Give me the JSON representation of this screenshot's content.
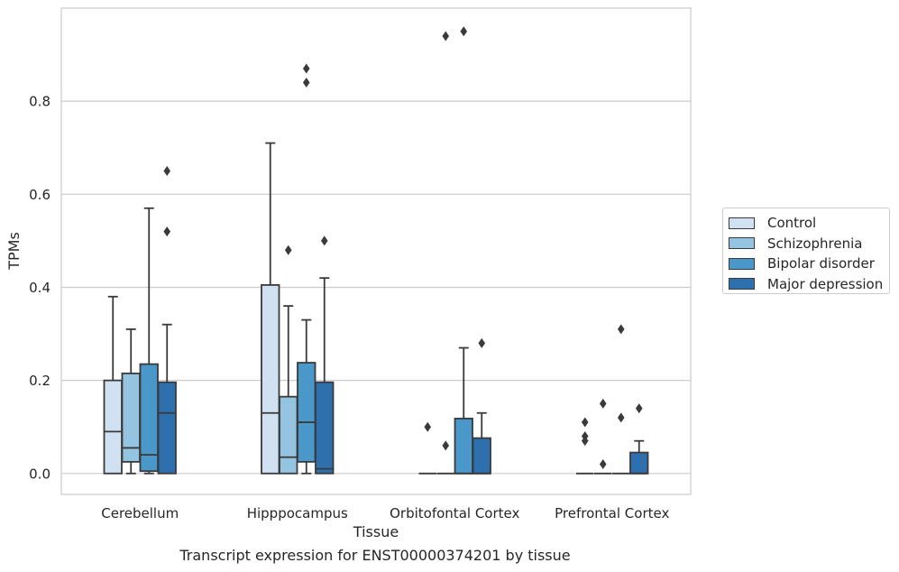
{
  "caption": "Transcript expression for ENST00000374201 by tissue",
  "chart_data": {
    "type": "box",
    "title": "",
    "xlabel": "Tissue",
    "ylabel": "TPMs",
    "ylim": [
      -0.045,
      1.0
    ],
    "yticks": [
      0.0,
      0.2,
      0.4,
      0.6,
      0.8
    ],
    "ytick_labels": [
      "0.0",
      "0.2",
      "0.4",
      "0.6",
      "0.8"
    ],
    "grid": "horizontal",
    "legend_position": "outside-right",
    "categories": [
      "Cerebellum",
      "Hipppocampus",
      "Orbitofontal Cortex",
      "Prefrontal Cortex"
    ],
    "series": [
      {
        "name": "Control",
        "color": "#d0e1f2",
        "boxes": [
          {
            "whisker_low": 0.0,
            "q1": 0.0,
            "median": 0.09,
            "q3": 0.2,
            "whisker_high": 0.38,
            "outliers": []
          },
          {
            "whisker_low": 0.0,
            "q1": 0.0,
            "median": 0.13,
            "q3": 0.405,
            "whisker_high": 0.71,
            "outliers": []
          },
          {
            "whisker_low": 0.0,
            "q1": 0.0,
            "median": 0.0,
            "q3": 0.0,
            "whisker_high": 0.0,
            "outliers": [
              0.1
            ]
          },
          {
            "whisker_low": 0.0,
            "q1": 0.0,
            "median": 0.0,
            "q3": 0.0,
            "whisker_high": 0.0,
            "outliers": [
              0.11,
              0.08,
              0.07
            ]
          }
        ]
      },
      {
        "name": "Schizophrenia",
        "color": "#94c4df",
        "boxes": [
          {
            "whisker_low": 0.0,
            "q1": 0.025,
            "median": 0.055,
            "q3": 0.215,
            "whisker_high": 0.31,
            "outliers": []
          },
          {
            "whisker_low": 0.0,
            "q1": 0.0,
            "median": 0.035,
            "q3": 0.165,
            "whisker_high": 0.36,
            "outliers": [
              0.48
            ]
          },
          {
            "whisker_low": 0.0,
            "q1": 0.0,
            "median": 0.0,
            "q3": 0.0,
            "whisker_high": 0.0,
            "outliers": [
              0.94,
              0.06
            ]
          },
          {
            "whisker_low": 0.0,
            "q1": 0.0,
            "median": 0.0,
            "q3": 0.0,
            "whisker_high": 0.0,
            "outliers": [
              0.15,
              0.02
            ]
          }
        ]
      },
      {
        "name": "Bipolar disorder",
        "color": "#4a98c9",
        "boxes": [
          {
            "whisker_low": 0.0,
            "q1": 0.005,
            "median": 0.04,
            "q3": 0.235,
            "whisker_high": 0.57,
            "outliers": []
          },
          {
            "whisker_low": 0.0,
            "q1": 0.025,
            "median": 0.11,
            "q3": 0.238,
            "whisker_high": 0.33,
            "outliers": [
              0.87,
              0.84
            ]
          },
          {
            "whisker_low": 0.0,
            "q1": 0.0,
            "median": 0.0,
            "q3": 0.118,
            "whisker_high": 0.27,
            "outliers": [
              0.95
            ]
          },
          {
            "whisker_low": 0.0,
            "q1": 0.0,
            "median": 0.0,
            "q3": 0.0,
            "whisker_high": 0.0,
            "outliers": [
              0.31,
              0.12
            ]
          }
        ]
      },
      {
        "name": "Major depression",
        "color": "#2e6fad",
        "boxes": [
          {
            "whisker_low": 0.0,
            "q1": 0.0,
            "median": 0.13,
            "q3": 0.196,
            "whisker_high": 0.32,
            "outliers": [
              0.65,
              0.52
            ]
          },
          {
            "whisker_low": 0.0,
            "q1": 0.0,
            "median": 0.01,
            "q3": 0.196,
            "whisker_high": 0.42,
            "outliers": [
              0.5
            ]
          },
          {
            "whisker_low": 0.0,
            "q1": 0.0,
            "median": 0.0,
            "q3": 0.076,
            "whisker_high": 0.13,
            "outliers": [
              0.28
            ]
          },
          {
            "whisker_low": 0.0,
            "q1": 0.0,
            "median": 0.0,
            "q3": 0.045,
            "whisker_high": 0.07,
            "outliers": [
              0.14
            ]
          }
        ]
      }
    ]
  }
}
